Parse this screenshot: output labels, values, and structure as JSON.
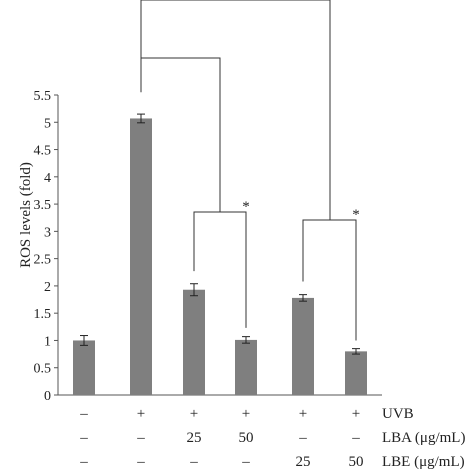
{
  "chart_data": {
    "type": "bar",
    "title": "",
    "xlabel": "",
    "ylabel": "ROS levels (fold)",
    "ylim": [
      0,
      5.5
    ],
    "yticks": [
      "0",
      "0.5",
      "1",
      "1.5",
      "2",
      "2.5",
      "3",
      "3.5",
      "4",
      "4.5",
      "5",
      "5.5"
    ],
    "values": [
      1.0,
      5.07,
      1.93,
      1.01,
      1.78,
      0.8
    ],
    "errors": [
      0.09,
      0.08,
      0.11,
      0.06,
      0.06,
      0.05
    ],
    "bar_color": "#7f7f7f",
    "conditions": [
      {
        "label": "UVB",
        "values": [
          "–",
          "+",
          "+",
          "+",
          "+",
          "+"
        ]
      },
      {
        "label": "LBA (μg/mL)",
        "values": [
          "–",
          "–",
          "25",
          "50",
          "–",
          "–"
        ]
      },
      {
        "label": "LBE (μg/mL)",
        "values": [
          "–",
          "–",
          "–",
          "–",
          "25",
          "50"
        ]
      }
    ],
    "annotations": [
      "*",
      "*"
    ]
  }
}
